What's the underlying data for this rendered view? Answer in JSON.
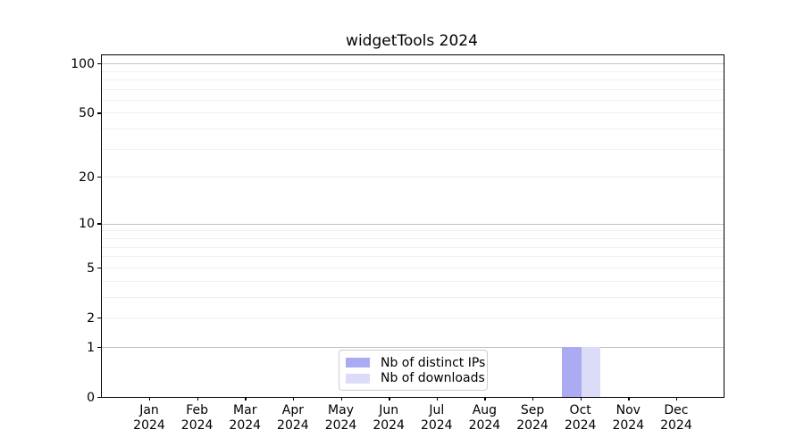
{
  "chart_data": {
    "type": "bar",
    "title": "widgetTools 2024",
    "categories": [
      "Jan",
      "Feb",
      "Mar",
      "Apr",
      "May",
      "Jun",
      "Jul",
      "Aug",
      "Sep",
      "Oct",
      "Nov",
      "Dec"
    ],
    "x_year_label": "2024",
    "series": [
      {
        "name": "Nb of distinct IPs",
        "color": "#ababf3",
        "values": [
          0,
          0,
          0,
          0,
          0,
          0,
          0,
          0,
          0,
          1,
          0,
          0
        ]
      },
      {
        "name": "Nb of downloads",
        "color": "#dcdcf8",
        "values": [
          0,
          0,
          0,
          0,
          0,
          0,
          0,
          0,
          0,
          1,
          0,
          0
        ]
      }
    ],
    "y_scale": "log1p",
    "ylim": [
      0,
      112
    ],
    "y_ticks": [
      0,
      1,
      2,
      5,
      10,
      20,
      50,
      100
    ],
    "y_major_gridlines": [
      1,
      10,
      100
    ],
    "y_minor_gridlines": [
      2,
      3,
      4,
      5,
      6,
      7,
      8,
      9,
      20,
      30,
      40,
      50,
      60,
      70,
      80,
      90
    ],
    "legend_position": "lower center",
    "grid": true
  },
  "colors": {
    "background": "#ffffff",
    "spine": "#000000",
    "grid_major": "#c3c3c3",
    "grid_minor": "#f0f0f0",
    "legend_border": "#cccccc",
    "text": "#000000"
  }
}
